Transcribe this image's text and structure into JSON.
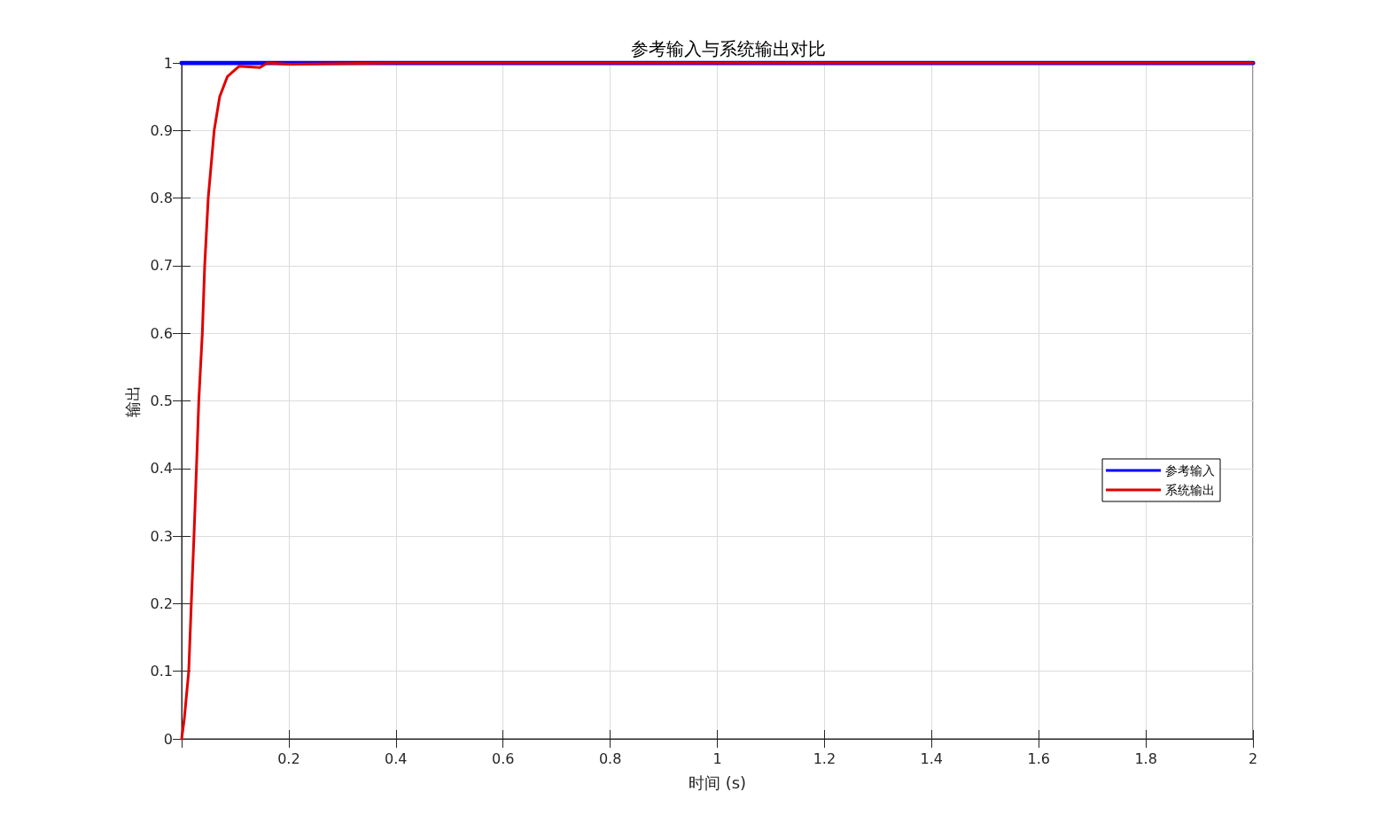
{
  "chart_data": {
    "type": "line",
    "title": "参考输入与系统输出对比",
    "xlabel": "时间 (s)",
    "ylabel": "输出",
    "xlim": [
      0,
      2
    ],
    "ylim": [
      0,
      1
    ],
    "xticks": [
      {
        "value": 0,
        "label": null
      },
      0.2,
      0.4,
      0.6,
      0.8,
      1,
      1.2,
      1.4,
      1.6,
      1.8,
      2
    ],
    "yticks": [
      0,
      0.1,
      0.2,
      0.3,
      0.4,
      0.5,
      0.6,
      0.7,
      0.8,
      0.9,
      1
    ],
    "grid": true,
    "legend": "right",
    "marker": "none",
    "line_style": "solid",
    "series": [
      {
        "name": "参考输入",
        "color": "#0000ff",
        "x": [
          0,
          2
        ],
        "values": [
          1,
          1
        ]
      },
      {
        "name": "系统输出",
        "color": "#e00000",
        "x": [
          0,
          0.005,
          0.0132,
          0.018,
          0.023,
          0.0276,
          0.032,
          0.0386,
          0.043,
          0.0496,
          0.0607,
          0.071,
          0.0855,
          0.107,
          0.146,
          0.16,
          0.2,
          0.3,
          0.4,
          2
        ],
        "values": [
          0,
          0.03,
          0.1,
          0.2,
          0.3,
          0.4,
          0.5,
          0.6,
          0.7,
          0.8,
          0.9,
          0.95,
          0.98,
          0.995,
          0.993,
          1,
          0.998,
          0.999,
          1,
          1
        ]
      }
    ]
  }
}
